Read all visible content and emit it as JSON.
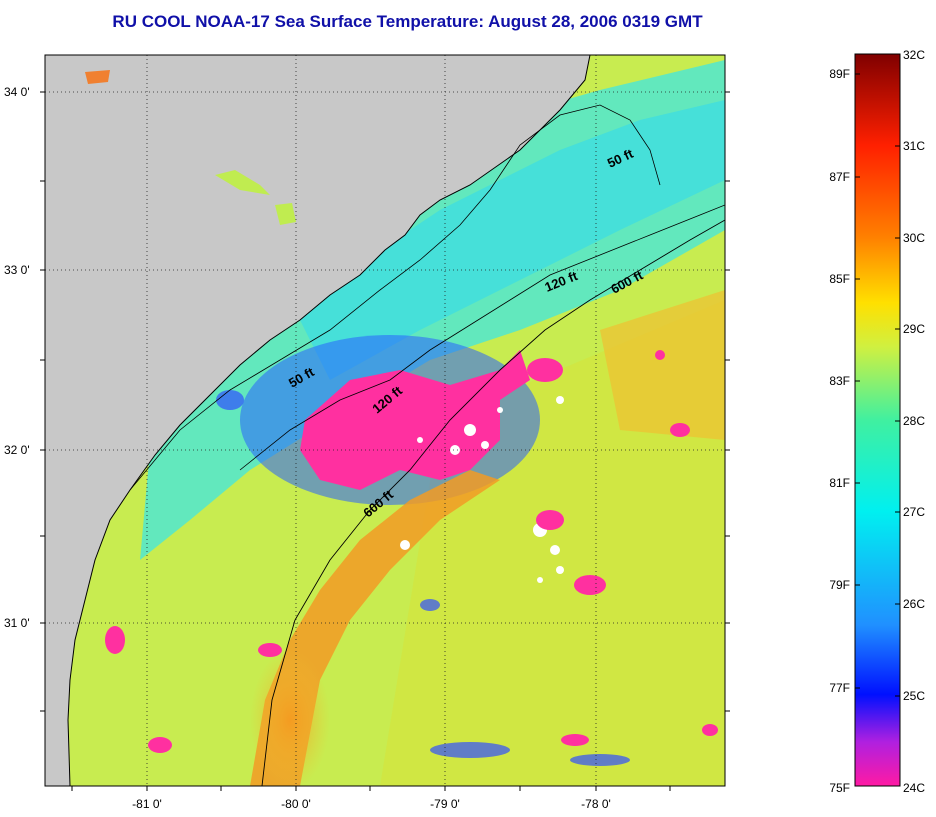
{
  "title": "RU COOL  NOAA-17  Sea Surface Temperature:  August 28, 2006 0319 GMT",
  "latitude_labels": [
    "34 0'",
    "33 0'",
    "32 0'",
    "31 0'"
  ],
  "longitude_labels": [
    "-81 0'",
    "-80 0'",
    "-79 0'",
    "-78 0'"
  ],
  "contour_labels": [
    "50 ft",
    "120 ft",
    "600 ft",
    "50 ft",
    "120 ft",
    "600 ft"
  ],
  "colorbar": {
    "celsius_labels": [
      "32C",
      "31C",
      "30C",
      "29C",
      "28C",
      "27C",
      "26C",
      "25C",
      "24C"
    ],
    "fahrenheit_labels": [
      "89F",
      "87F",
      "85F",
      "83F",
      "81F",
      "79F",
      "77F",
      "75F"
    ],
    "stops": [
      "#ff1aa3",
      "#b020e0",
      "#0010ff",
      "#2090ff",
      "#00f0f0",
      "#40f0a0",
      "#d0f040",
      "#ffe000",
      "#ff8000",
      "#ff2000",
      "#800000"
    ]
  },
  "colors": {
    "land": "#c8c8c8",
    "cold_anomaly": "#ff30a0",
    "coastal_cool": "#40e8e8",
    "warm_stream": "#f0a020"
  }
}
